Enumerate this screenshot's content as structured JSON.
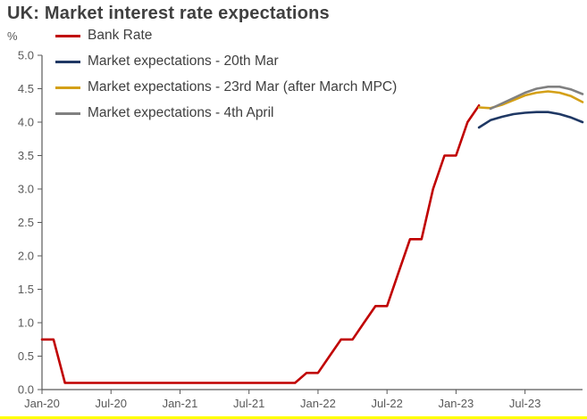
{
  "title": "UK: Market interest rate expectations",
  "y_axis_unit": "%",
  "accent_line_color": "#ffff00",
  "chart_data": {
    "type": "line",
    "title": "UK: Market interest rate expectations",
    "ylabel": "%",
    "xlabel": "",
    "ylim": [
      0,
      5
    ],
    "ytick_step": 0.5,
    "grid": false,
    "legend_position": "top-left",
    "axis_color": "#595959",
    "x_unit": "months-since-Jan-2020",
    "x_range_months": [
      0,
      47
    ],
    "x_tick_months": [
      0,
      6,
      12,
      18,
      24,
      30,
      36,
      42
    ],
    "x_tick_labels": [
      "Jan-20",
      "Jul-20",
      "Jan-21",
      "Jul-21",
      "Jan-22",
      "Jul-22",
      "Jan-23",
      "Jul-23"
    ],
    "series": [
      {
        "id": "bank-rate",
        "name": "Bank Rate",
        "color": "#c00000",
        "x": [
          0,
          1,
          2,
          3,
          4,
          5,
          6,
          7,
          8,
          9,
          10,
          11,
          12,
          13,
          14,
          15,
          16,
          17,
          18,
          19,
          20,
          21,
          22,
          23,
          24,
          25,
          26,
          27,
          28,
          29,
          30,
          31,
          32,
          33,
          34,
          35,
          36,
          37,
          38
        ],
        "y": [
          0.75,
          0.75,
          0.1,
          0.1,
          0.1,
          0.1,
          0.1,
          0.1,
          0.1,
          0.1,
          0.1,
          0.1,
          0.1,
          0.1,
          0.1,
          0.1,
          0.1,
          0.1,
          0.1,
          0.1,
          0.1,
          0.1,
          0.1,
          0.25,
          0.25,
          0.5,
          0.75,
          0.75,
          1.0,
          1.25,
          1.25,
          1.75,
          2.25,
          2.25,
          3.0,
          3.5,
          3.5,
          4.0,
          4.25
        ]
      },
      {
        "id": "market-20th-mar",
        "name": "Market expectations - 20th Mar",
        "color": "#1f3864",
        "x": [
          38,
          39,
          40,
          41,
          42,
          43,
          44,
          45,
          46,
          47
        ],
        "y": [
          3.92,
          4.03,
          4.08,
          4.12,
          4.14,
          4.15,
          4.15,
          4.12,
          4.07,
          4.0
        ]
      },
      {
        "id": "market-23rd-mar",
        "name": "Market expectations - 23rd Mar (after March MPC)",
        "color": "#d4a017",
        "x": [
          38,
          39,
          40,
          41,
          42,
          43,
          44,
          45,
          46,
          47
        ],
        "y": [
          4.22,
          4.21,
          4.26,
          4.33,
          4.4,
          4.44,
          4.46,
          4.44,
          4.39,
          4.3
        ]
      },
      {
        "id": "market-4th-april",
        "name": "Market expectations - 4th April",
        "color": "#808080",
        "x": [
          39,
          40,
          41,
          42,
          43,
          44,
          45,
          46,
          47
        ],
        "y": [
          4.2,
          4.28,
          4.36,
          4.44,
          4.5,
          4.53,
          4.53,
          4.49,
          4.42
        ]
      }
    ]
  }
}
